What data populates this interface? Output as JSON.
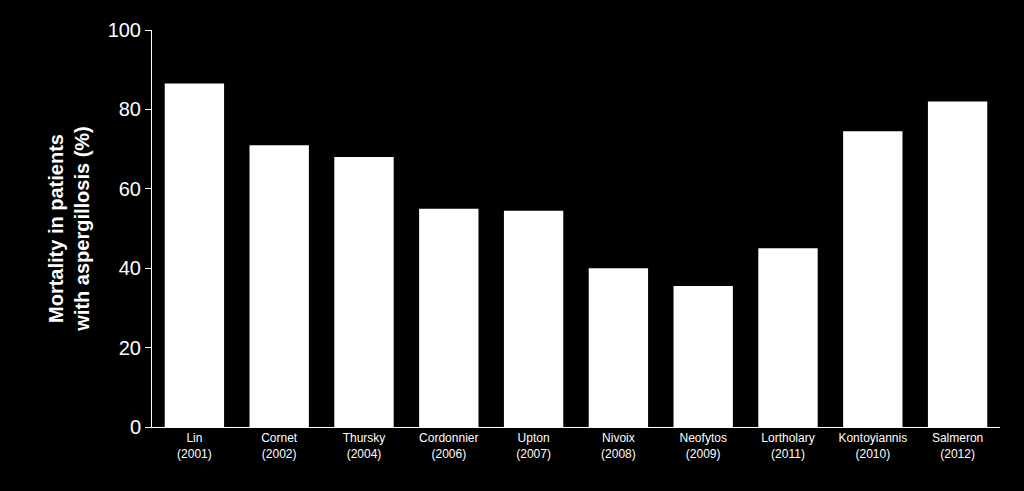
{
  "chart_data": {
    "type": "bar",
    "ylabel": "Mortality in patients with aspergillosis (%)",
    "categories": [
      "Lin (2001)",
      "Cornet (2002)",
      "Thursky (2004)",
      "Cordonnier (2006)",
      "Upton (2007)",
      "Nivoix (2008)",
      "Neofytos (2009)",
      "Lortholary (2011)",
      "Kontoyiannis (2010)",
      "Salmeron (2012)"
    ],
    "values": [
      86.5,
      71,
      68,
      55,
      54.5,
      40,
      35.5,
      45,
      74.5,
      82
    ],
    "color": "#ffffff",
    "ylim": [
      0,
      100
    ],
    "yticks": [
      0,
      20,
      40,
      60,
      80,
      100
    ],
    "grid": false
  }
}
